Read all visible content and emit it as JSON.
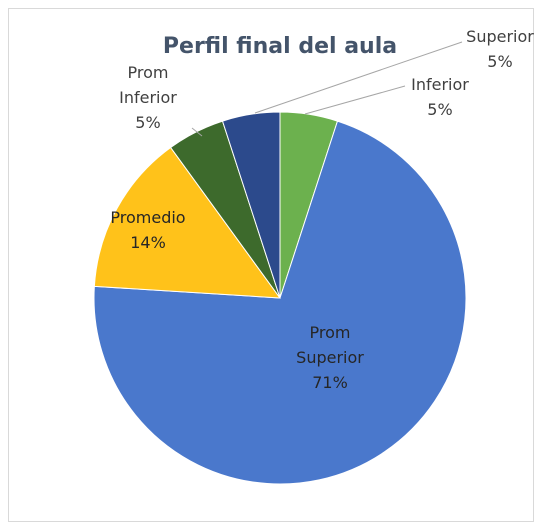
{
  "chart_data": {
    "type": "pie",
    "title": "Perfil final del aula",
    "categories": [
      "Inferior",
      "Prom Superior",
      "Promedio",
      "Prom Inferior",
      "Superior"
    ],
    "values": [
      5,
      71,
      14,
      5,
      5
    ],
    "value_labels": [
      "5%",
      "71%",
      "14%",
      "5%",
      "5%"
    ],
    "colors": [
      "#6cb14e",
      "#4a78cc",
      "#ffc21a",
      "#3d6a2c",
      "#2c4a8c"
    ]
  }
}
